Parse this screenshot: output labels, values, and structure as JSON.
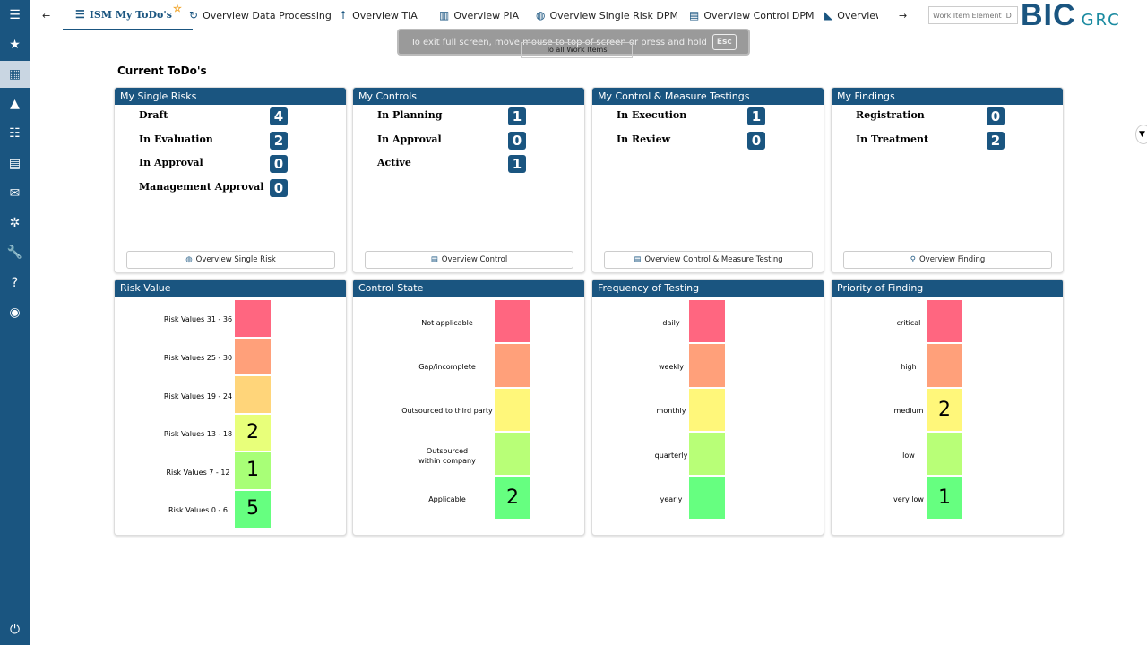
{
  "sidebar": {
    "items": [
      {
        "icon": "menu-icon",
        "glyph": "☰"
      },
      {
        "icon": "star-icon",
        "glyph": "★"
      },
      {
        "icon": "dashboard-icon",
        "glyph": "▦",
        "active": true
      },
      {
        "icon": "shapes-icon",
        "glyph": "▲"
      },
      {
        "icon": "list-check-icon",
        "glyph": "☷"
      },
      {
        "icon": "report-icon",
        "glyph": "▤"
      },
      {
        "icon": "inbox-badge-icon",
        "glyph": "✉"
      },
      {
        "icon": "network-icon",
        "glyph": "✲"
      },
      {
        "icon": "wrench-icon",
        "glyph": "🔧"
      },
      {
        "icon": "help-icon",
        "glyph": "?"
      },
      {
        "icon": "user-icon",
        "glyph": "◉"
      }
    ],
    "power": {
      "icon": "power-icon",
      "glyph": "⏻"
    }
  },
  "topbar": {
    "back": "←",
    "forward": "→",
    "tabs": [
      {
        "label": "ISM My ToDo's",
        "icon": "list-icon",
        "glyph": "☰",
        "active": true,
        "favorite": "☆"
      },
      {
        "label": "Overview Data Processing",
        "icon": "refresh-icon",
        "glyph": "↻"
      },
      {
        "label": "Overview TIA",
        "icon": "sort-icon",
        "glyph": "↑"
      },
      {
        "label": "Overview PIA",
        "icon": "chart-icon",
        "glyph": "▥"
      },
      {
        "label": "Overview Single Risk DPM",
        "icon": "risk-icon",
        "glyph": "◍"
      },
      {
        "label": "Overview Control DPM",
        "icon": "clipboard-icon",
        "glyph": "▤"
      },
      {
        "label": "Overview Me",
        "icon": "measure-icon",
        "glyph": "◣"
      }
    ],
    "work_item_placeholder": "Work Item Element ID",
    "logo": {
      "main": "BIC",
      "sub": "GRC"
    }
  },
  "fullscreen_notice": {
    "text": "To exit full screen, move mouse to top of screen or press and hold",
    "key": "Esc"
  },
  "all_work_items": "To all Work Items",
  "page_title": "Current ToDo's",
  "status_panels": [
    {
      "title": "My Single Risks",
      "rows": [
        {
          "label": "Draft",
          "count": "4"
        },
        {
          "label": "In Evaluation",
          "count": "2"
        },
        {
          "label": "In Approval",
          "count": "0"
        },
        {
          "label": "Management Approval",
          "count": "0"
        }
      ],
      "button": "Overview Single Risk",
      "button_icon": "risk-icon"
    },
    {
      "title": "My Controls",
      "rows": [
        {
          "label": "In Planning",
          "count": "1"
        },
        {
          "label": "In Approval",
          "count": "0"
        },
        {
          "label": "Active",
          "count": "1"
        }
      ],
      "button": "Overview Control",
      "button_icon": "clipboard-icon"
    },
    {
      "title": "My Control & Measure Testings",
      "rows": [
        {
          "label": "In Execution",
          "count": "1"
        },
        {
          "label": "In Review",
          "count": "0"
        }
      ],
      "button": "Overview Control & Measure Testing",
      "button_icon": "clipboard-icon"
    },
    {
      "title": "My Findings",
      "rows": [
        {
          "label": "Registration",
          "count": "0"
        },
        {
          "label": "In Treatment",
          "count": "2"
        }
      ],
      "button": "Overview Finding",
      "button_icon": "search-icon"
    }
  ],
  "heat_panels": [
    {
      "title": "Risk Value",
      "cells": [
        {
          "label": "Risk Values 31 - 36",
          "value": "",
          "color": "#ff6680"
        },
        {
          "label": "Risk Values 25 - 30",
          "value": "",
          "color": "#ffa07a"
        },
        {
          "label": "Risk Values 19 - 24",
          "value": "",
          "color": "#ffd57a"
        },
        {
          "label": "Risk Values 13 - 18",
          "value": "2",
          "color": "#e8ff7a"
        },
        {
          "label": "Risk Values 7 - 12",
          "value": "1",
          "color": "#a8ff77"
        },
        {
          "label": "Risk Values 0 - 6",
          "value": "5",
          "color": "#66ff80"
        }
      ]
    },
    {
      "title": "Control State",
      "cells": [
        {
          "label": "Not applicable",
          "value": "",
          "color": "#ff6680"
        },
        {
          "label": "Gap/incomplete",
          "value": "",
          "color": "#ffa07a"
        },
        {
          "label": "Outsourced to third party",
          "value": "",
          "color": "#fff77a"
        },
        {
          "label": "Outsourced\nwithin company",
          "value": "",
          "color": "#b8ff77"
        },
        {
          "label": "Applicable",
          "value": "2",
          "color": "#66ff80"
        }
      ]
    },
    {
      "title": "Frequency of Testing",
      "cells": [
        {
          "label": "daily",
          "value": "",
          "color": "#ff6680"
        },
        {
          "label": "weekly",
          "value": "",
          "color": "#ffa07a"
        },
        {
          "label": "monthly",
          "value": "",
          "color": "#fff77a"
        },
        {
          "label": "quarterly",
          "value": "",
          "color": "#b8ff77"
        },
        {
          "label": "yearly",
          "value": "",
          "color": "#66ff80"
        }
      ]
    },
    {
      "title": "Priority of Finding",
      "cells": [
        {
          "label": "critical",
          "value": "",
          "color": "#ff6680"
        },
        {
          "label": "high",
          "value": "",
          "color": "#ffa07a"
        },
        {
          "label": "medium",
          "value": "2",
          "color": "#fff77a"
        },
        {
          "label": "low",
          "value": "",
          "color": "#b8ff77"
        },
        {
          "label": "very low",
          "value": "1",
          "color": "#66ff80"
        }
      ]
    }
  ]
}
